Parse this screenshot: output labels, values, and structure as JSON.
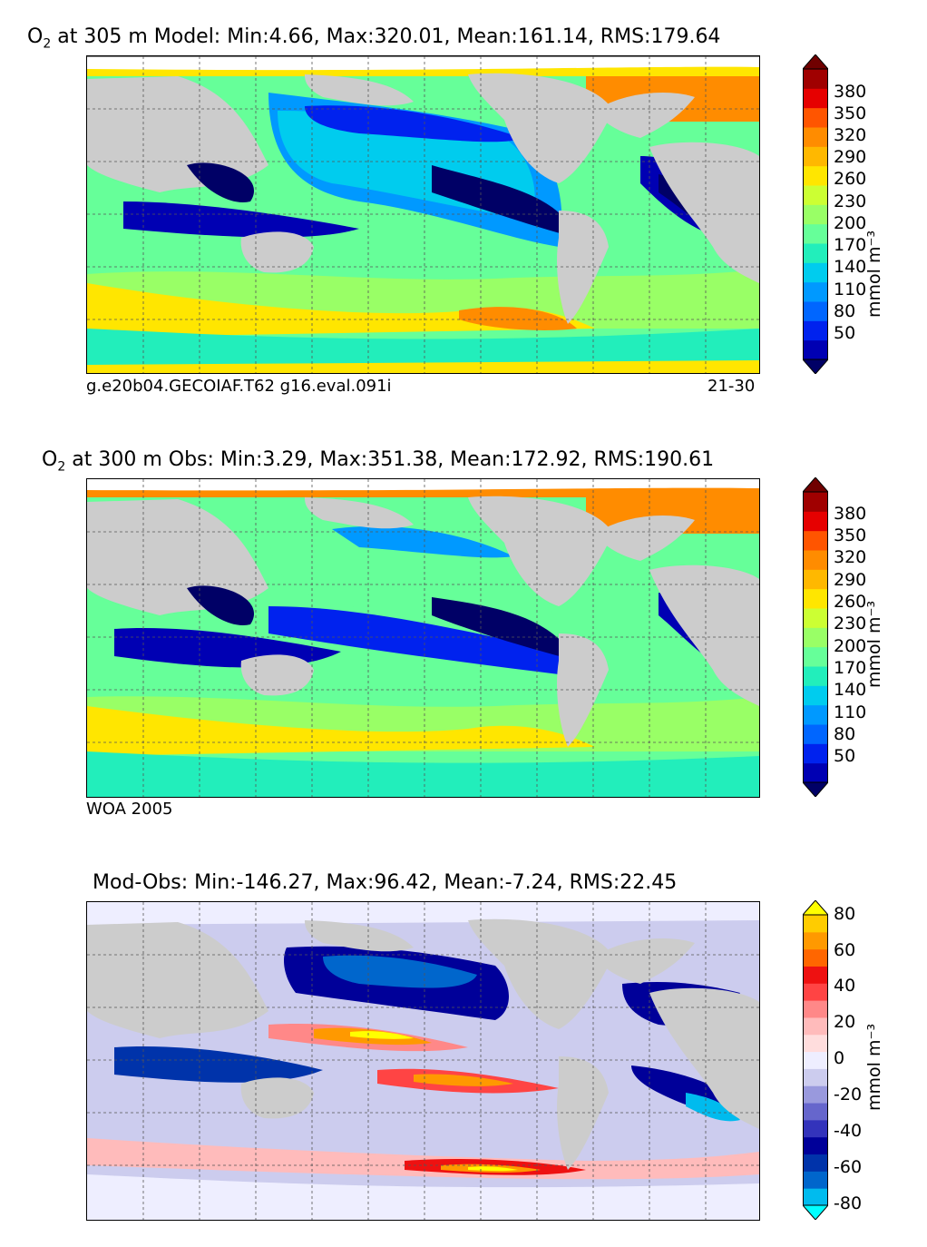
{
  "panels": [
    {
      "title_prefix": "O",
      "title_sub": "2",
      "title_rest": " at 305 m Model: Min:4.66, Max:320.01, Mean:161.14, RMS:179.64",
      "caption_left": "g.e20b04.GECOIAF.T62 g16.eval.091i",
      "caption_right": "21-30"
    },
    {
      "title_prefix": "O",
      "title_sub": "2",
      "title_rest": " at 300 m Obs: Min:3.29, Max:351.38, Mean:172.92, RMS:190.61",
      "caption_left": "WOA 2005",
      "caption_right": ""
    },
    {
      "title_prefix": "",
      "title_sub": "",
      "title_rest": "Mod-Obs: Min:-146.27, Max:96.42, Mean:-7.24, RMS:22.45",
      "caption_left": "",
      "caption_right": ""
    }
  ],
  "o2_colorbar": {
    "ticks": [
      "380",
      "350",
      "320",
      "290",
      "260",
      "230",
      "200",
      "170",
      "140",
      "110",
      "80",
      "50"
    ],
    "unit": "mmol m⁻³",
    "colors": [
      "#000066",
      "#0000b3",
      "#0022ee",
      "#0066ff",
      "#0099ff",
      "#00ccee",
      "#22eebb",
      "#66ff99",
      "#99ff66",
      "#ccff33",
      "#ffe600",
      "#ffb800",
      "#ff8c00",
      "#ff5500",
      "#e60000",
      "#a00000",
      "#700000"
    ]
  },
  "diff_colorbar": {
    "ticks": [
      "80",
      "60",
      "40",
      "20",
      "0",
      "-20",
      "-40",
      "-60",
      "-80"
    ],
    "unit": "mmol m⁻³",
    "colors": [
      "#00ffff",
      "#00bbee",
      "#0066cc",
      "#0033aa",
      "#000099",
      "#3333bb",
      "#6666cc",
      "#9999dd",
      "#ccccee",
      "#eeeeff",
      "#ffdddd",
      "#ffbbbb",
      "#ff8888",
      "#ff4444",
      "#ee1111",
      "#ff6600",
      "#ff9900",
      "#ffcc00",
      "#ffff00"
    ]
  },
  "map_colors": {
    "land": "#cccccc",
    "no_data": "#ffffff"
  }
}
